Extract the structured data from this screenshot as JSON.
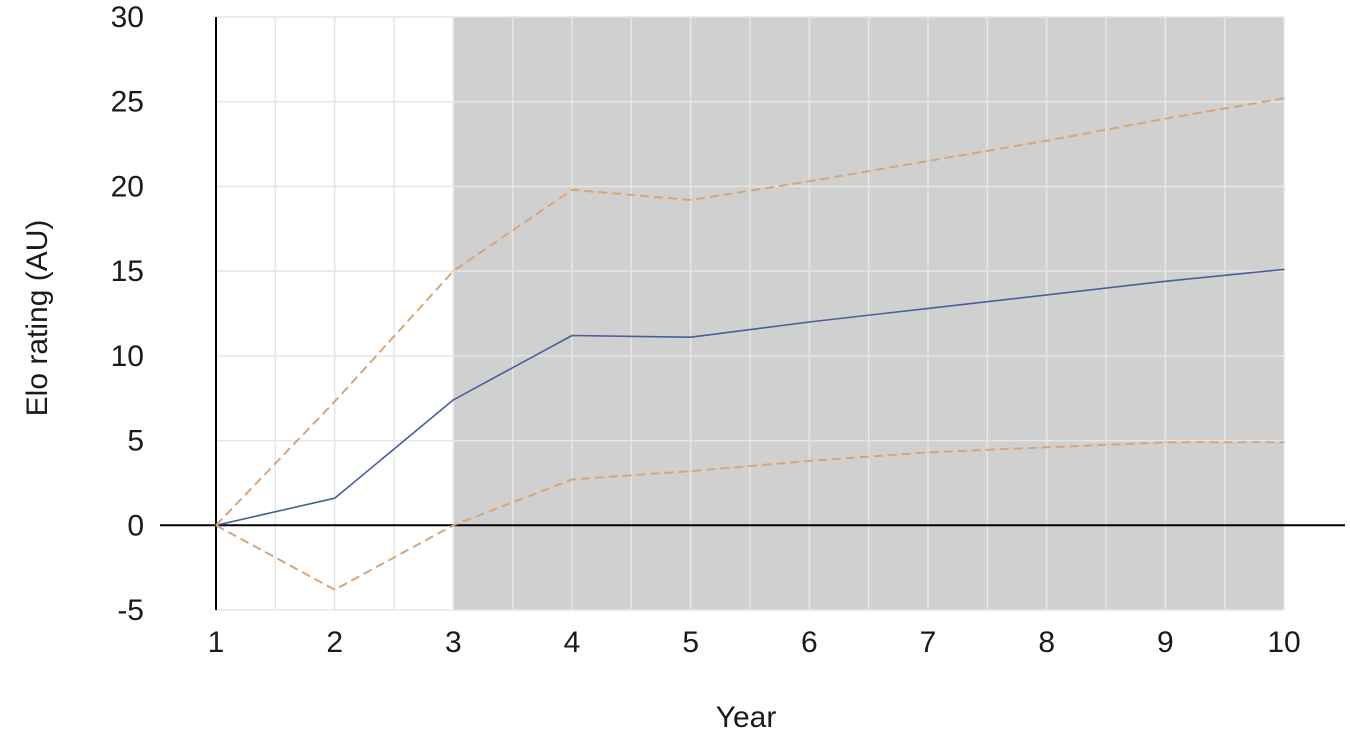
{
  "chart_data": {
    "type": "line",
    "title": "",
    "xlabel": "Year",
    "ylabel": "Elo rating (AU)",
    "x": [
      1,
      2,
      3,
      4,
      5,
      6,
      7,
      8,
      9,
      10
    ],
    "xlim": [
      1,
      10
    ],
    "ylim": [
      -5,
      30
    ],
    "yticks": [
      -5,
      0,
      5,
      10,
      15,
      20,
      25,
      30
    ],
    "xticks": [
      1,
      2,
      3,
      4,
      5,
      6,
      7,
      8,
      9,
      10
    ],
    "grid": true,
    "shaded_region": {
      "x_from": 3,
      "x_to": 10,
      "color": "#d0d0d0"
    },
    "series": [
      {
        "style": "solid",
        "color": "#4a5f9a",
        "values": [
          0,
          1.6,
          7.4,
          11.2,
          11.1,
          12.0,
          12.8,
          13.6,
          14.4,
          15.1
        ]
      },
      {
        "style": "dashed",
        "color": "#d7a57a",
        "values": [
          0,
          7.3,
          15.0,
          19.8,
          19.2,
          20.3,
          21.5,
          22.7,
          24.0,
          25.2
        ]
      },
      {
        "style": "dashed",
        "color": "#d7a57a",
        "values": [
          0,
          -3.8,
          0,
          2.7,
          3.2,
          3.8,
          4.3,
          4.6,
          4.9,
          4.9
        ]
      }
    ],
    "colors": {
      "gridline": "#e6e6e6",
      "axis": "#000000",
      "background": "#ffffff"
    }
  }
}
